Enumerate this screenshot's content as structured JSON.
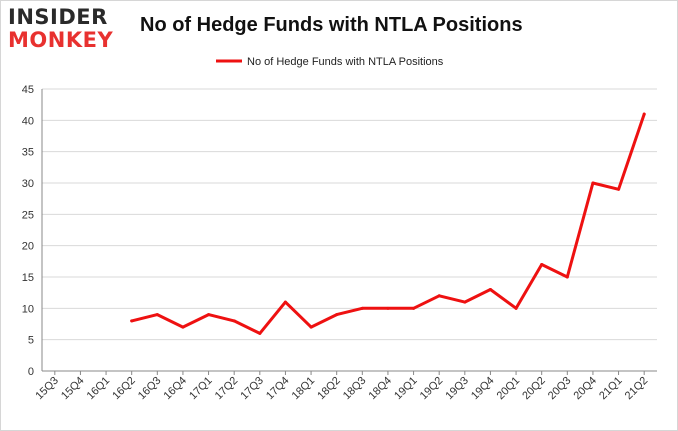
{
  "logo": {
    "line1": "INSIDER",
    "line2": "MONKEY"
  },
  "chart_data": {
    "type": "line",
    "title": "No of Hedge Funds with NTLA Positions",
    "categories": [
      "15Q3",
      "15Q4",
      "16Q1",
      "16Q2",
      "16Q3",
      "16Q4",
      "17Q1",
      "17Q2",
      "17Q3",
      "17Q4",
      "18Q1",
      "18Q2",
      "18Q3",
      "18Q4",
      "19Q1",
      "19Q2",
      "19Q3",
      "19Q4",
      "20Q1",
      "20Q2",
      "20Q3",
      "20Q4",
      "21Q1",
      "21Q2"
    ],
    "series": [
      {
        "name": "No of Hedge Funds with NTLA Positions",
        "values": [
          null,
          null,
          null,
          8,
          9,
          7,
          9,
          8,
          6,
          11,
          7,
          9,
          10,
          10,
          10,
          12,
          11,
          13,
          10,
          17,
          15,
          30,
          29,
          41
        ]
      }
    ],
    "ylim": [
      0,
      45
    ],
    "yticks": [
      0,
      5,
      10,
      15,
      20,
      25,
      30,
      35,
      40,
      45
    ],
    "grid": true,
    "legend": "top-center",
    "colors": {
      "line": "#ee1111",
      "grid": "#d9d9d9",
      "axis": "#888888"
    }
  }
}
